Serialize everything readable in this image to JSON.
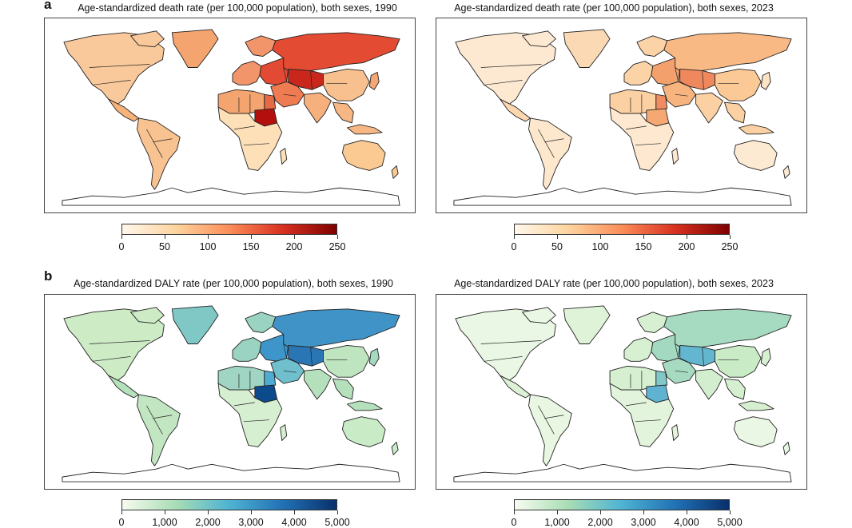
{
  "panels": [
    {
      "letter": "a",
      "colorscale": {
        "min_color": "#fff5eb",
        "max_color": "#7f0000",
        "stops": [
          "#fff7ec",
          "#fdd49e",
          "#fc8d59",
          "#d7301f",
          "#7f0000"
        ]
      },
      "ticks": [
        "0",
        "50",
        "100",
        "150",
        "200",
        "250"
      ],
      "maps": [
        {
          "title": "Age-standardized death rate (per 100,000 population), both sexes, 1990",
          "regions": {
            "north_america": "#f9c89b",
            "greenland": "#f4a46f",
            "central_america": "#f7b27a",
            "south_america": "#f8c291",
            "europe_west": "#f3956a",
            "europe_east": "#e24a33",
            "russia": "#e34b33",
            "central_asia": "#c9271c",
            "north_africa": "#f4a46f",
            "egypt": "#e56a45",
            "sudan": "#b3100d",
            "sub_saharan": "#fddfb8",
            "middle_east": "#ee7b52",
            "south_asia": "#f6b07d",
            "china": "#f7c08e",
            "se_asia": "#f7b785",
            "australia": "#fbc992",
            "japan": "#f4a874"
          }
        },
        {
          "title": "Age-standardized death rate (per 100,000 population), both sexes, 2023",
          "regions": {
            "north_america": "#fde9d2",
            "greenland": "#fbd9b4",
            "central_america": "#fcd7b0",
            "south_america": "#fde7cd",
            "europe_west": "#fcd2a7",
            "europe_east": "#f4a06d",
            "russia": "#f9b985",
            "central_asia": "#f0885d",
            "north_africa": "#fbd0a2",
            "egypt": "#f08c5f",
            "sudan": "#f6a872",
            "sub_saharan": "#fee8cf",
            "middle_east": "#f8b47f",
            "south_asia": "#fbd0a2",
            "china": "#fbc995",
            "se_asia": "#fbd0a2",
            "australia": "#fdead2",
            "japan": "#fde2c3"
          }
        }
      ]
    },
    {
      "letter": "b",
      "colorscale": {
        "min_color": "#f7fcf0",
        "max_color": "#08306b",
        "stops": [
          "#f7fcf0",
          "#a8ddb5",
          "#4eb3d3",
          "#2171b5",
          "#08306b"
        ]
      },
      "ticks": [
        "0",
        "1,000",
        "2,000",
        "3,000",
        "4,000",
        "5,000"
      ],
      "maps": [
        {
          "title": "Age-standardized DALY rate (per 100,000 population), both sexes, 1990",
          "regions": {
            "north_america": "#cdebc5",
            "greenland": "#7fc8c6",
            "central_america": "#b5e0bc",
            "south_america": "#c2e6c1",
            "europe_west": "#9ad3c1",
            "europe_east": "#3e95c9",
            "russia": "#3f93c7",
            "central_asia": "#2a75b4",
            "north_africa": "#9fd5c2",
            "egypt": "#4eacd2",
            "sudan": "#0d4a8c",
            "sub_saharan": "#d6efd0",
            "middle_east": "#6fbfcc",
            "south_asia": "#b5e0bc",
            "china": "#bee4c0",
            "se_asia": "#b5e0bc",
            "australia": "#c9ebc6",
            "japan": "#a5dac0"
          }
        },
        {
          "title": "Age-standardized DALY rate (per 100,000 population), both sexes, 2023",
          "regions": {
            "north_america": "#eaf7e4",
            "greenland": "#dff3d8",
            "central_america": "#dcf1d5",
            "south_america": "#e8f6e2",
            "europe_west": "#d8f0d2",
            "europe_east": "#a3d9c1",
            "russia": "#a6dac1",
            "central_asia": "#62b6cf",
            "north_africa": "#d6efd0",
            "egypt": "#80c8c8",
            "sudan": "#5fb3d0",
            "sub_saharan": "#e3f4dc",
            "middle_east": "#a6dac1",
            "south_asia": "#d3eece",
            "china": "#c9ebc6",
            "se_asia": "#d6efd0",
            "australia": "#eaf7e4",
            "japan": "#d8f0d2"
          }
        }
      ]
    }
  ]
}
